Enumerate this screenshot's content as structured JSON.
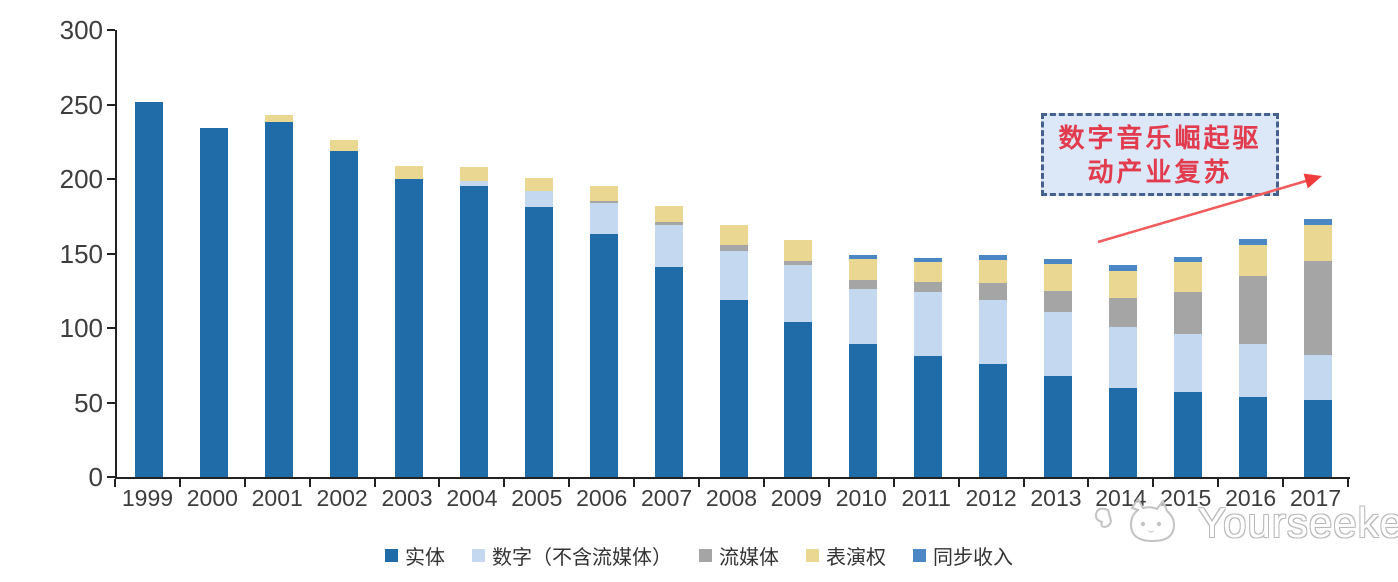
{
  "chart_data": {
    "type": "bar",
    "stacked": true,
    "title": "",
    "xlabel": "",
    "ylabel": "",
    "ylim": [
      0,
      300
    ],
    "ytick_step": 50,
    "grid": false,
    "legend_position": "bottom",
    "categories": [
      "1999",
      "2000",
      "2001",
      "2002",
      "2003",
      "2004",
      "2005",
      "2006",
      "2007",
      "2008",
      "2009",
      "2010",
      "2011",
      "2012",
      "2013",
      "2014",
      "2015",
      "2016",
      "2017"
    ],
    "series": [
      {
        "name": "实体",
        "color": "#1f6ca9",
        "values": [
          252,
          234,
          238,
          219,
          200,
          195,
          181,
          163,
          141,
          119,
          104,
          89,
          81,
          76,
          68,
          60,
          57,
          54,
          52
        ]
      },
      {
        "name": "数字（不含流媒体）",
        "color": "#c4d9ef",
        "values": [
          0,
          0,
          0,
          0,
          0,
          4,
          11,
          21,
          28,
          33,
          38,
          37,
          43,
          43,
          43,
          41,
          39,
          35,
          30
        ]
      },
      {
        "name": "流媒体",
        "color": "#a5a5a5",
        "values": [
          0,
          0,
          0,
          0,
          0,
          0,
          0,
          1,
          2,
          4,
          3,
          6,
          7,
          11,
          14,
          19,
          28,
          46,
          63
        ]
      },
      {
        "name": "表演权",
        "color": "#ead892",
        "values": [
          0,
          0,
          5,
          7,
          9,
          9,
          9,
          10,
          11,
          13,
          14,
          14,
          13,
          16,
          18,
          18,
          20,
          21,
          24
        ]
      },
      {
        "name": "同步收入",
        "color": "#4b87c5",
        "values": [
          0,
          0,
          0,
          0,
          0,
          0,
          0,
          0,
          0,
          0,
          0,
          3,
          3,
          3,
          3,
          4,
          4,
          4,
          4
        ]
      }
    ]
  },
  "annotation": {
    "lines": [
      "数字音乐崛起驱",
      "动产业复苏"
    ],
    "fill_color": "#dce8f8",
    "border_color": "#44618f",
    "text_color": "#e23b4e",
    "arrow_color": "#f15b5b"
  },
  "watermark": {
    "text": "Yourseeker",
    "logo": "cat-face-logo"
  }
}
